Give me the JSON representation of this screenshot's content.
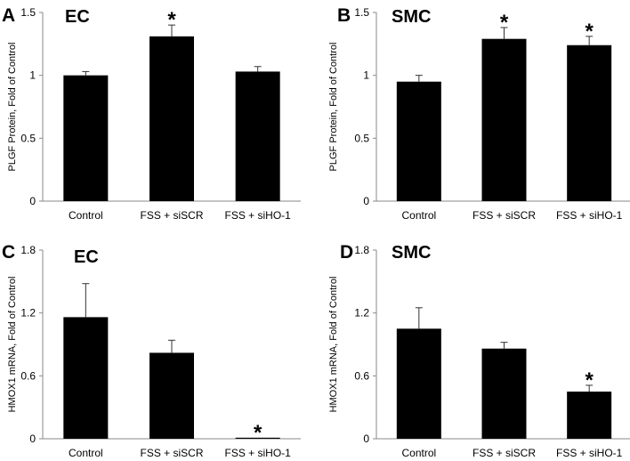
{
  "chart_data": [
    {
      "type": "bar",
      "panel_letter": "A",
      "title": "EC",
      "ylabel": "PLGF Protein, Fold of Control",
      "xlabel": "",
      "categories": [
        "Control",
        "FSS + siSCR",
        "FSS + siHO-1"
      ],
      "values": [
        1.0,
        1.31,
        1.03
      ],
      "errors": [
        0.03,
        0.09,
        0.04
      ],
      "significance": [
        "",
        "*",
        ""
      ],
      "ylim": [
        0,
        1.5
      ],
      "yticks": [
        0,
        0.5,
        1,
        1.5
      ],
      "ytick_labels": [
        "0",
        "0.5",
        "1",
        "1.5"
      ],
      "bar_color": "#000000"
    },
    {
      "type": "bar",
      "panel_letter": "B",
      "title": "SMC",
      "ylabel": "PLGF Protein, Fold of Control",
      "xlabel": "",
      "categories": [
        "Control",
        "FSS + siSCR",
        "FSS + siHO-1"
      ],
      "values": [
        0.95,
        1.29,
        1.24
      ],
      "errors": [
        0.05,
        0.09,
        0.07
      ],
      "significance": [
        "",
        "*",
        "*"
      ],
      "ylim": [
        0,
        1.5
      ],
      "yticks": [
        0,
        0.5,
        1,
        1.5
      ],
      "ytick_labels": [
        "0",
        "0.5",
        "1",
        "1.5"
      ],
      "bar_color": "#000000"
    },
    {
      "type": "bar",
      "panel_letter": "C",
      "title": "EC",
      "ylabel": "HMOX1 mRNA, Fold of Control",
      "xlabel": "",
      "categories": [
        "Control",
        "FSS + siSCR",
        "FSS + siHO-1"
      ],
      "values": [
        1.16,
        0.82,
        0.01
      ],
      "errors": [
        0.32,
        0.12,
        0.0
      ],
      "significance": [
        "",
        "",
        "*"
      ],
      "ylim": [
        0,
        1.8
      ],
      "yticks": [
        0,
        0.6,
        1.2,
        1.8
      ],
      "ytick_labels": [
        "0",
        "0.6",
        "1.2",
        "1.8"
      ],
      "bar_color": "#000000"
    },
    {
      "type": "bar",
      "panel_letter": "D",
      "title": "SMC",
      "ylabel": "HMOX1 mRNA, Fold of Control",
      "xlabel": "",
      "categories": [
        "Control",
        "FSS + siSCR",
        "FSS + siHO-1"
      ],
      "values": [
        1.05,
        0.86,
        0.45
      ],
      "errors": [
        0.2,
        0.06,
        0.06
      ],
      "significance": [
        "",
        "",
        "*"
      ],
      "ylim": [
        0,
        1.8
      ],
      "yticks": [
        0,
        0.6,
        1.2,
        1.8
      ],
      "ytick_labels": [
        "0",
        "0.6",
        "1.2",
        "1.8"
      ],
      "bar_color": "#000000"
    }
  ]
}
